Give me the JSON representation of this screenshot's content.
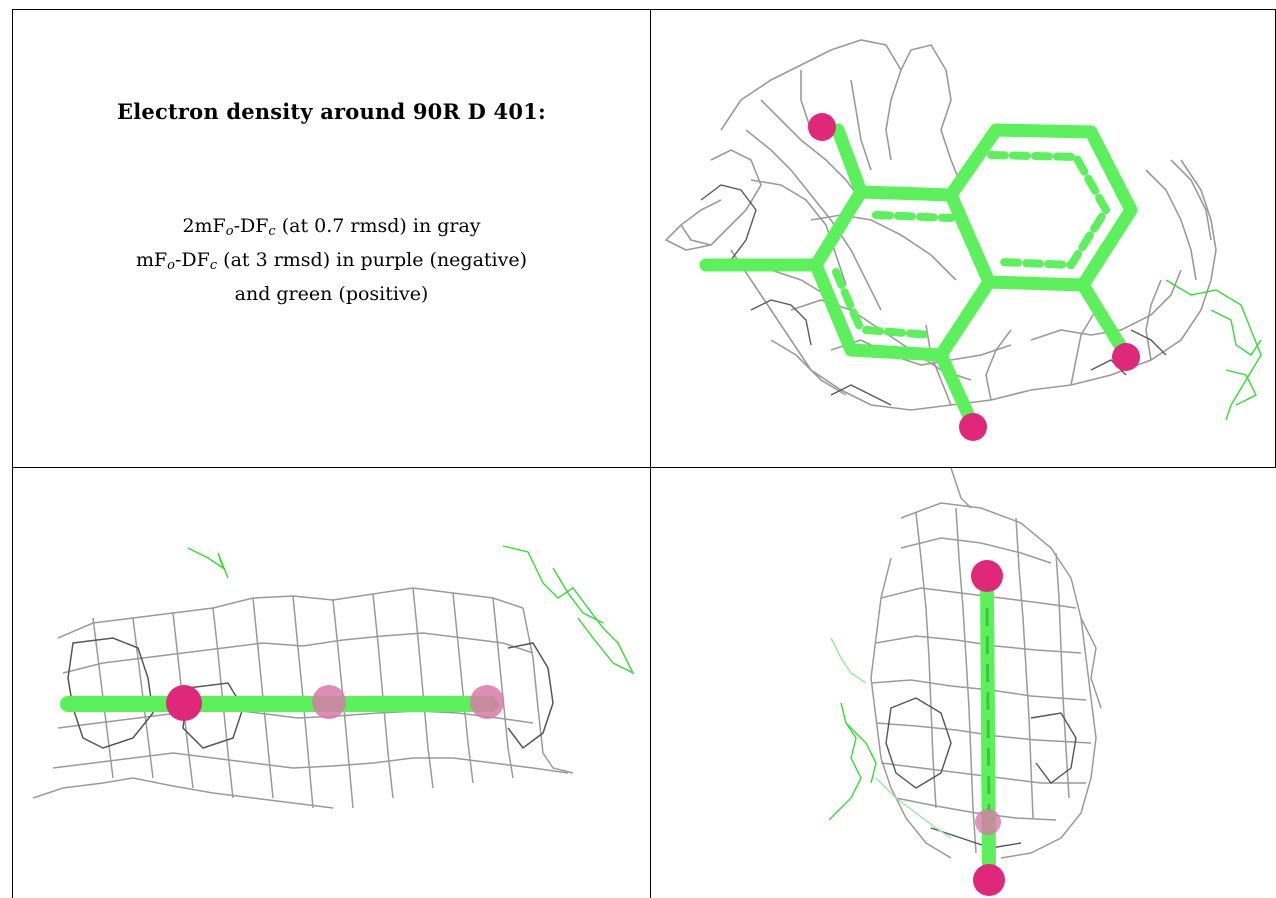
{
  "caption": {
    "title": "Electron density around 90R D 401:",
    "line1": {
      "prefix": "2mF",
      "sub_o": "o",
      "mid": "-DF",
      "sub_c": "c",
      "suffix": " (at 0.7 rmsd) in gray"
    },
    "line2": {
      "prefix": "mF",
      "sub_o": "o",
      "mid": "-DF",
      "sub_c": "c",
      "suffix": " (at 3 rmsd) in purple (negative)"
    },
    "line3": "and green (positive)"
  },
  "colors": {
    "mesh_gray": "#8c8c8c",
    "mesh_dark": "#555555",
    "ligand_green": "#5cf05c",
    "positive_green": "#33dd33",
    "oxygen_magenta": "#e0287a",
    "border": "#000000"
  },
  "views": [
    "top view",
    "side view",
    "end view"
  ]
}
